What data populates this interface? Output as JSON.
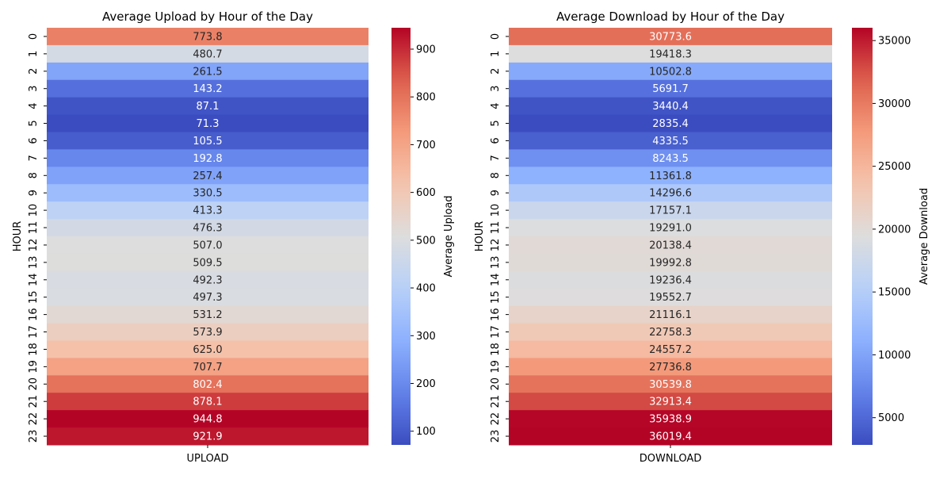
{
  "chart_data": [
    {
      "type": "heatmap",
      "title": "Average Upload by Hour of the Day",
      "ylabel": "HOUR",
      "xlabel": "",
      "columns": [
        "UPLOAD"
      ],
      "rows": [
        "0",
        "1",
        "2",
        "3",
        "4",
        "5",
        "6",
        "7",
        "8",
        "9",
        "10",
        "11",
        "12",
        "13",
        "14",
        "15",
        "16",
        "17",
        "18",
        "19",
        "20",
        "21",
        "22",
        "23"
      ],
      "values": [
        773.8,
        480.7,
        261.5,
        143.2,
        87.1,
        71.3,
        105.5,
        192.8,
        257.4,
        330.5,
        413.3,
        476.3,
        507.0,
        509.5,
        492.3,
        497.3,
        531.2,
        573.9,
        625.0,
        707.7,
        802.4,
        878.1,
        944.8,
        921.9
      ],
      "value_labels": [
        "773.8",
        "480.7",
        "261.5",
        "143.2",
        "87.1",
        "71.3",
        "105.5",
        "192.8",
        "257.4",
        "330.5",
        "413.3",
        "476.3",
        "507.0",
        "509.5",
        "492.3",
        "497.3",
        "531.2",
        "573.9",
        "625.0",
        "707.7",
        "802.4",
        "878.1",
        "944.8",
        "921.9"
      ],
      "colormap": "coolwarm",
      "colorbar": {
        "label": "Average Upload",
        "vmin": 71.3,
        "vmax": 944.8,
        "ticks": [
          100,
          200,
          300,
          400,
          500,
          600,
          700,
          800,
          900
        ],
        "tick_labels": [
          "100",
          "200",
          "300",
          "400",
          "500",
          "600",
          "700",
          "800",
          "900"
        ]
      }
    },
    {
      "type": "heatmap",
      "title": "Average Download by Hour of the Day",
      "ylabel": "HOUR",
      "xlabel": "",
      "columns": [
        "DOWNLOAD"
      ],
      "rows": [
        "0",
        "1",
        "2",
        "3",
        "4",
        "5",
        "6",
        "7",
        "8",
        "9",
        "10",
        "11",
        "12",
        "13",
        "14",
        "15",
        "16",
        "17",
        "18",
        "19",
        "20",
        "21",
        "22",
        "23"
      ],
      "values": [
        30773.6,
        19418.3,
        10502.8,
        5691.7,
        3440.4,
        2835.4,
        4335.5,
        8243.5,
        11361.8,
        14296.6,
        17157.1,
        19291.0,
        20138.4,
        19992.8,
        19236.4,
        19552.7,
        21116.1,
        22758.3,
        24557.2,
        27736.8,
        30539.8,
        32913.4,
        35938.9,
        36019.4
      ],
      "value_labels": [
        "30773.6",
        "19418.3",
        "10502.8",
        "5691.7",
        "3440.4",
        "2835.4",
        "4335.5",
        "8243.5",
        "11361.8",
        "14296.6",
        "17157.1",
        "19291.0",
        "20138.4",
        "19992.8",
        "19236.4",
        "19552.7",
        "21116.1",
        "22758.3",
        "24557.2",
        "27736.8",
        "30539.8",
        "32913.4",
        "35938.9",
        "36019.4"
      ],
      "colormap": "coolwarm",
      "colorbar": {
        "label": "Average Download",
        "vmin": 2835.4,
        "vmax": 36019.4,
        "ticks": [
          5000,
          10000,
          15000,
          20000,
          25000,
          30000,
          35000
        ],
        "tick_labels": [
          "5000",
          "10000",
          "15000",
          "20000",
          "25000",
          "30000",
          "35000"
        ]
      }
    }
  ]
}
